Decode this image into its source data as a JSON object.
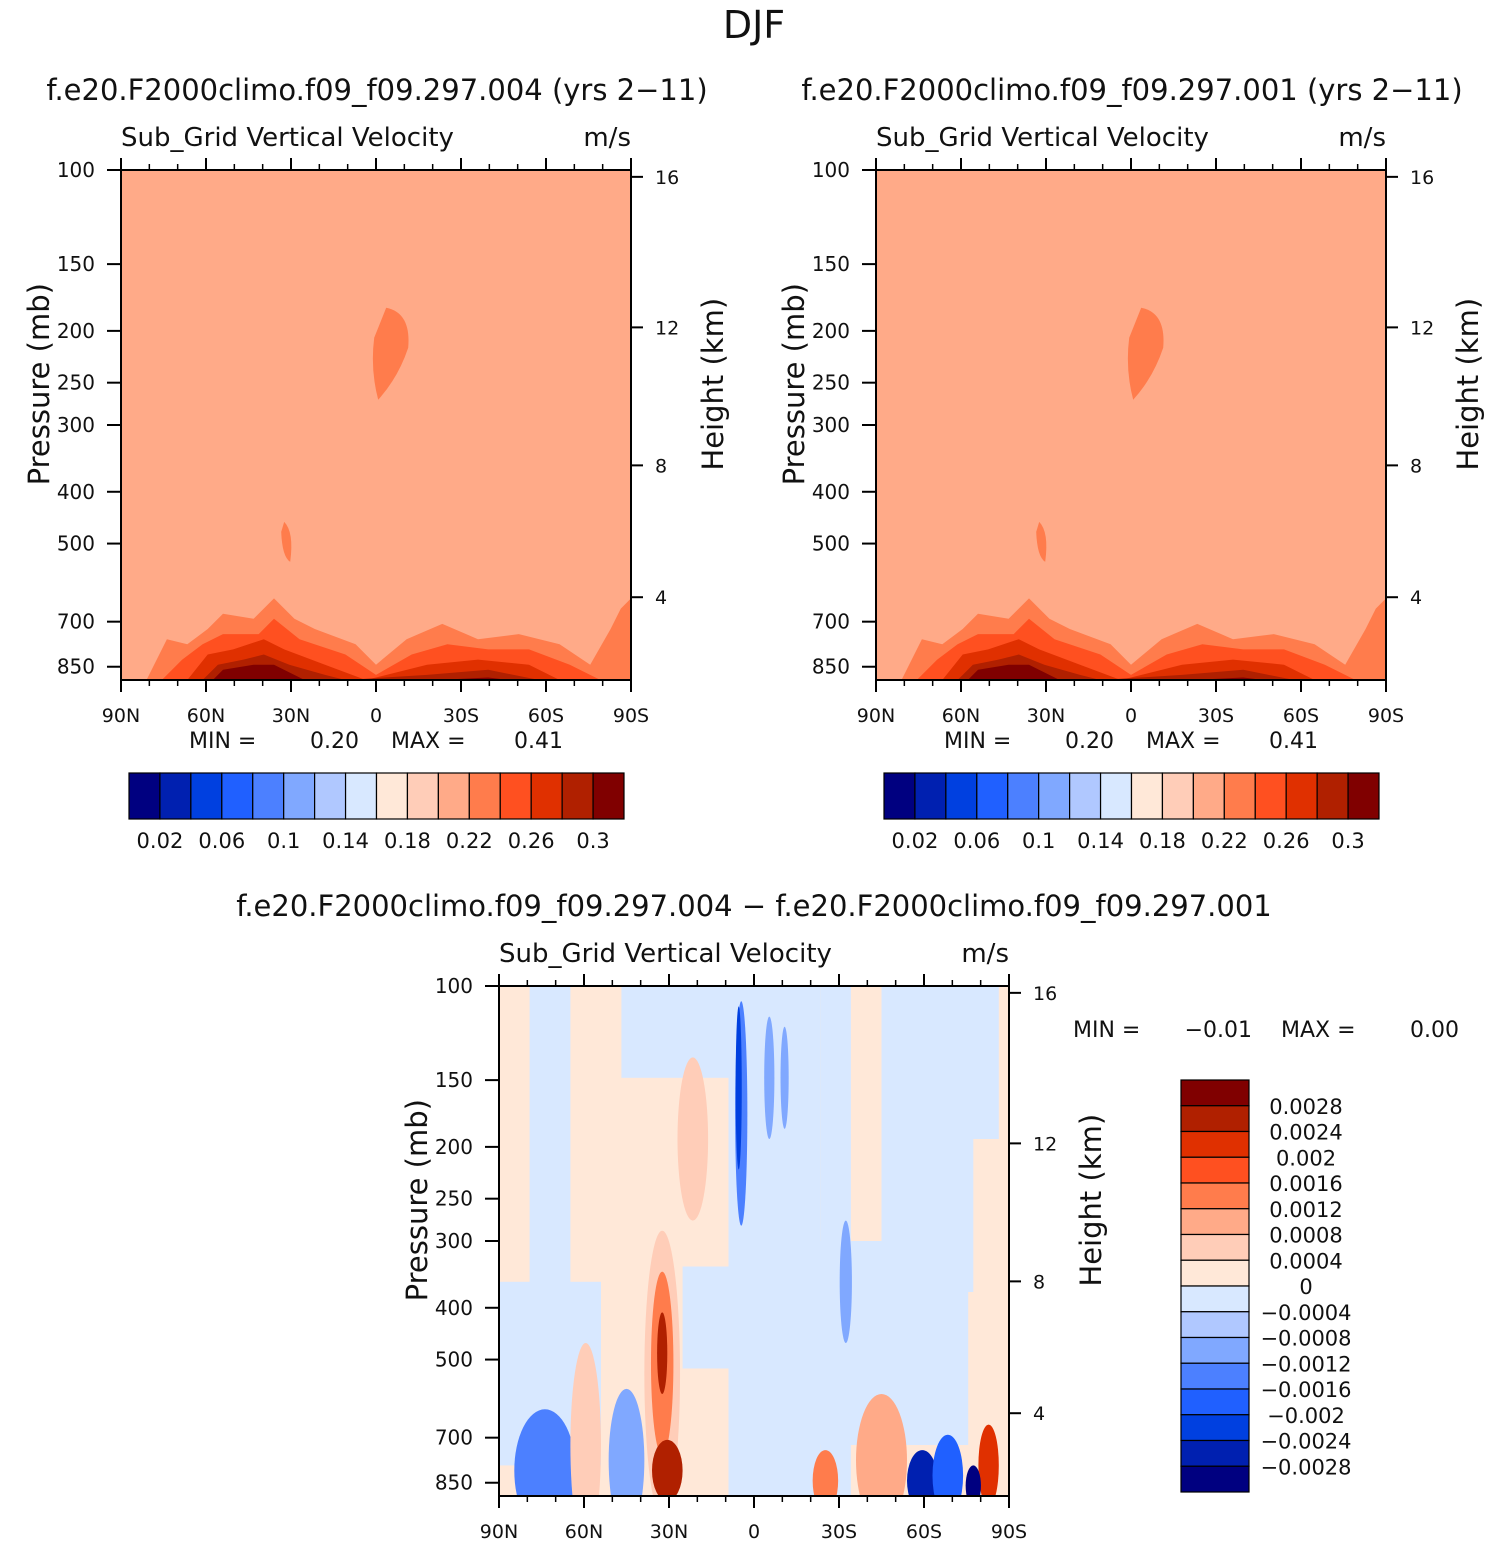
{
  "figure": {
    "title": "DJF",
    "colors": {
      "sequential": [
        "#000080",
        "#0020b0",
        "#0040e0",
        "#2060ff",
        "#4c80ff",
        "#80a8ff",
        "#b0c8ff",
        "#d8e8ff",
        "#ffe8d8",
        "#ffcdb8",
        "#ffaa88",
        "#ff7c4c",
        "#ff5020",
        "#e03000",
        "#b02000",
        "#800000"
      ],
      "diverging": [
        "#000080",
        "#0020b0",
        "#0040e0",
        "#2060ff",
        "#4c80ff",
        "#80a8ff",
        "#b0c8ff",
        "#d8e8ff",
        "#ffe8d8",
        "#ffcdb8",
        "#ffaa88",
        "#ff7c4c",
        "#ff5020",
        "#e03000",
        "#b02000",
        "#800000"
      ]
    }
  },
  "chart_data": [
    {
      "type": "heatmap",
      "case_title": "f.e20.F2000climo.f09_f09.297.004 (yrs 2−11)",
      "variable": "Sub_Grid Vertical Velocity",
      "units": "m/s",
      "ylabel": "Pressure (mb)",
      "ylabel_right": "Height (km)",
      "x_ticks": [
        "90N",
        "60N",
        "30N",
        "0",
        "30S",
        "60S",
        "90S"
      ],
      "x_range": [
        90,
        -90
      ],
      "pressure_ticks": [
        "100",
        "150",
        "200",
        "250",
        "300",
        "400",
        "500",
        "700",
        "850"
      ],
      "pressure_range": [
        100,
        900
      ],
      "height_ticks": [
        "16",
        "12",
        "8",
        "4"
      ],
      "min_label": "MIN =",
      "min_value": "0.20",
      "max_label": "MAX =",
      "max_value": "0.41",
      "background_level": 0.22,
      "colorbar_labels": [
        "0.02",
        "0.06",
        "0.1",
        "0.14",
        "0.18",
        "0.22",
        "0.26",
        "0.3"
      ],
      "contour_levels": [
        0.02,
        0.04,
        0.06,
        0.08,
        0.1,
        0.12,
        0.14,
        0.16,
        0.18,
        0.2,
        0.22,
        0.24,
        0.26,
        0.28,
        0.3
      ]
    },
    {
      "type": "heatmap",
      "case_title": "f.e20.F2000climo.f09_f09.297.001 (yrs 2−11)",
      "variable": "Sub_Grid Vertical Velocity",
      "units": "m/s",
      "ylabel": "Pressure (mb)",
      "ylabel_right": "Height (km)",
      "x_ticks": [
        "90N",
        "60N",
        "30N",
        "0",
        "30S",
        "60S",
        "90S"
      ],
      "x_range": [
        90,
        -90
      ],
      "pressure_ticks": [
        "100",
        "150",
        "200",
        "250",
        "300",
        "400",
        "500",
        "700",
        "850"
      ],
      "pressure_range": [
        100,
        900
      ],
      "height_ticks": [
        "16",
        "12",
        "8",
        "4"
      ],
      "min_label": "MIN =",
      "min_value": "0.20",
      "max_label": "MAX =",
      "max_value": "0.41",
      "background_level": 0.22,
      "colorbar_labels": [
        "0.02",
        "0.06",
        "0.1",
        "0.14",
        "0.18",
        "0.22",
        "0.26",
        "0.3"
      ],
      "contour_levels": [
        0.02,
        0.04,
        0.06,
        0.08,
        0.1,
        0.12,
        0.14,
        0.16,
        0.18,
        0.2,
        0.22,
        0.24,
        0.26,
        0.28,
        0.3
      ]
    },
    {
      "type": "heatmap",
      "case_title": "f.e20.F2000climo.f09_f09.297.004 − f.e20.F2000climo.f09_f09.297.001",
      "variable": "Sub_Grid Vertical Velocity",
      "units": "m/s",
      "ylabel": "Pressure (mb)",
      "ylabel_right": "Height (km)",
      "x_ticks": [
        "90N",
        "60N",
        "30N",
        "0",
        "30S",
        "60S",
        "90S"
      ],
      "x_range": [
        90,
        -90
      ],
      "pressure_ticks": [
        "100",
        "150",
        "200",
        "250",
        "300",
        "400",
        "500",
        "700",
        "850"
      ],
      "pressure_range": [
        100,
        900
      ],
      "height_ticks": [
        "16",
        "12",
        "8",
        "4"
      ],
      "min_label": "MIN =",
      "min_value": "−0.01",
      "max_label": "MAX =",
      "max_value": "0.00",
      "colorbar_labels": [
        "0.0028",
        "0.0024",
        "0.002",
        "0.0016",
        "0.0012",
        "0.0008",
        "0.0004",
        "0",
        "−0.0004",
        "−0.0008",
        "−0.0012",
        "−0.0016",
        "−0.002",
        "−0.0024",
        "−0.0028"
      ],
      "contour_levels": [
        -0.0028,
        -0.0024,
        -0.002,
        -0.0016,
        -0.0012,
        -0.0008,
        -0.0004,
        0,
        0.0004,
        0.0008,
        0.0012,
        0.0016,
        0.002,
        0.0024,
        0.0028
      ]
    }
  ]
}
